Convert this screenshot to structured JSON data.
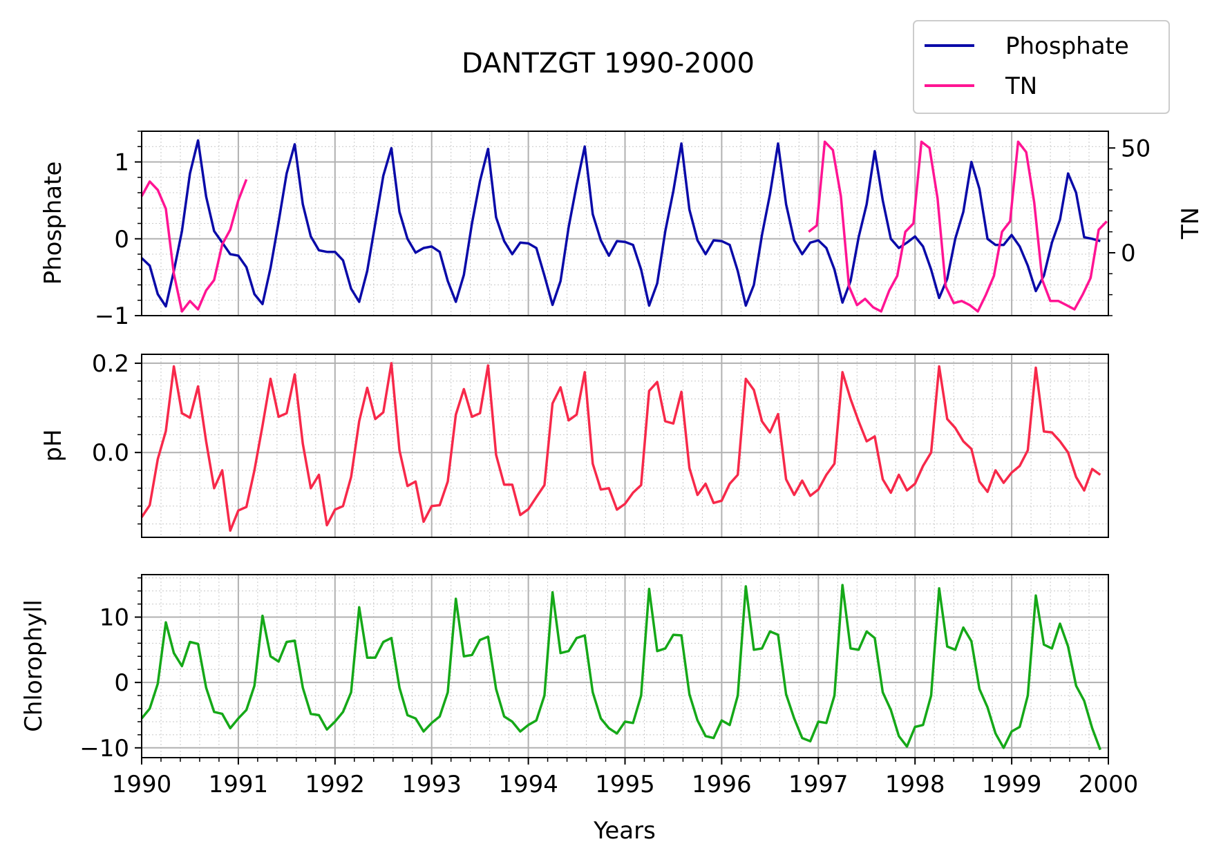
{
  "figure": {
    "title": "DANTZGT 1990-2000",
    "xlabel": "Years",
    "x_ticks": [
      "1990",
      "1991",
      "1992",
      "1993",
      "1994",
      "1995",
      "1996",
      "1997",
      "1998",
      "1999",
      "2000"
    ]
  },
  "legend": {
    "placement": "top-right, outside axes",
    "items": [
      {
        "label": "Phosphate",
        "color": "#0a0aa8"
      },
      {
        "label": "TN",
        "color": "#ff1493"
      }
    ]
  },
  "chart_data": [
    {
      "type": "line",
      "panel": "top",
      "ylabel": "Phosphate",
      "ylabel_right": "TN",
      "xlim": [
        1990,
        2000
      ],
      "ylim": [
        -1,
        1.4
      ],
      "yticks": [
        {
          "v": 1,
          "label": "1"
        },
        {
          "v": 0,
          "label": "0"
        },
        {
          "v": -1,
          "label": "−1"
        }
      ],
      "ylim_right": [
        -30,
        58
      ],
      "yticks_right": [
        {
          "v": 50,
          "label": "50"
        },
        {
          "v": 0,
          "label": "0"
        }
      ],
      "grid": true,
      "series": [
        {
          "name": "Phosphate",
          "color": "#0a0aa8",
          "x_start": 1990.0,
          "x_step": 0.08333,
          "values": [
            -0.25,
            -0.35,
            -0.72,
            -0.88,
            -0.42,
            0.1,
            0.85,
            1.28,
            0.55,
            0.1,
            -0.05,
            -0.2,
            -0.22,
            -0.37,
            -0.72,
            -0.85,
            -0.38,
            0.22,
            0.85,
            1.23,
            0.45,
            0.03,
            -0.15,
            -0.17,
            -0.17,
            -0.28,
            -0.65,
            -0.82,
            -0.42,
            0.2,
            0.82,
            1.18,
            0.35,
            0.0,
            -0.18,
            -0.12,
            -0.1,
            -0.17,
            -0.55,
            -0.82,
            -0.47,
            0.2,
            0.75,
            1.17,
            0.28,
            -0.03,
            -0.2,
            -0.05,
            -0.06,
            -0.12,
            -0.48,
            -0.86,
            -0.55,
            0.15,
            0.7,
            1.2,
            0.32,
            -0.02,
            -0.22,
            -0.03,
            -0.04,
            -0.08,
            -0.4,
            -0.87,
            -0.58,
            0.1,
            0.62,
            1.24,
            0.38,
            -0.02,
            -0.2,
            -0.02,
            -0.03,
            -0.08,
            -0.42,
            -0.87,
            -0.6,
            0.05,
            0.58,
            1.24,
            0.45,
            -0.02,
            -0.2,
            -0.05,
            -0.02,
            -0.12,
            -0.4,
            -0.83,
            -0.55,
            0.02,
            0.45,
            1.14,
            0.5,
            0.0,
            -0.12,
            -0.05,
            0.03,
            -0.1,
            -0.4,
            -0.77,
            -0.52,
            0.0,
            0.35,
            1.0,
            0.65,
            0.0,
            -0.08,
            -0.08,
            0.05,
            -0.1,
            -0.35,
            -0.68,
            -0.48,
            -0.05,
            0.25,
            0.85,
            0.6,
            0.02,
            0.0,
            -0.03
          ]
        },
        {
          "name": "TN",
          "color": "#ff1493",
          "axis": "right",
          "segments": [
            {
              "x_start": 1990.0,
              "x_step": 0.08333,
              "values": [
                27,
                34,
                30,
                21,
                -10,
                -28,
                -23,
                -27,
                -18,
                -13,
                4,
                11,
                25,
                35
              ]
            },
            {
              "x_start": 1996.9,
              "x_step": 0.08333,
              "values": [
                10,
                13,
                53,
                49,
                27,
                -16,
                -25,
                -22,
                -26,
                -28,
                -18,
                -11,
                10,
                14,
                53,
                50,
                26,
                -16,
                -24,
                -23,
                -25,
                -28,
                -20,
                -11,
                10,
                15,
                53,
                48,
                24,
                -13,
                -23,
                -23,
                -25,
                -27,
                -20,
                -12,
                11,
                15
              ]
            }
          ]
        }
      ]
    },
    {
      "type": "line",
      "panel": "middle",
      "ylabel": "pH",
      "xlim": [
        1990,
        2000
      ],
      "ylim": [
        -0.19,
        0.22
      ],
      "yticks": [
        {
          "v": 0.2,
          "label": "0.2"
        },
        {
          "v": 0.0,
          "label": "0.0"
        }
      ],
      "grid": true,
      "series": [
        {
          "name": "pH",
          "color": "#f7294a",
          "x_start": 1990.0,
          "x_step": 0.08333,
          "values": [
            -0.145,
            -0.118,
            -0.015,
            0.048,
            0.193,
            0.088,
            0.078,
            0.148,
            0.025,
            -0.08,
            -0.04,
            -0.175,
            -0.13,
            -0.122,
            -0.04,
            0.06,
            0.165,
            0.08,
            0.088,
            0.175,
            0.02,
            -0.08,
            -0.05,
            -0.163,
            -0.128,
            -0.12,
            -0.055,
            0.07,
            0.145,
            0.075,
            0.09,
            0.2,
            0.005,
            -0.075,
            -0.065,
            -0.155,
            -0.12,
            -0.118,
            -0.065,
            0.085,
            0.142,
            0.08,
            0.088,
            0.195,
            -0.005,
            -0.072,
            -0.072,
            -0.14,
            -0.127,
            -0.1,
            -0.073,
            0.11,
            0.146,
            0.072,
            0.085,
            0.18,
            -0.025,
            -0.083,
            -0.08,
            -0.128,
            -0.115,
            -0.09,
            -0.073,
            0.138,
            0.158,
            0.07,
            0.065,
            0.136,
            -0.035,
            -0.095,
            -0.07,
            -0.113,
            -0.108,
            -0.07,
            -0.05,
            0.165,
            0.14,
            0.07,
            0.045,
            0.086,
            -0.06,
            -0.095,
            -0.063,
            -0.097,
            -0.083,
            -0.05,
            -0.025,
            0.18,
            0.12,
            0.07,
            0.025,
            0.036,
            -0.06,
            -0.09,
            -0.05,
            -0.085,
            -0.07,
            -0.03,
            0.0,
            0.193,
            0.075,
            0.055,
            0.025,
            0.008,
            -0.065,
            -0.088,
            -0.04,
            -0.068,
            -0.045,
            -0.03,
            0.005,
            0.19,
            0.047,
            0.045,
            0.025,
            0.0,
            -0.055,
            -0.085,
            -0.037,
            -0.05
          ]
        }
      ]
    },
    {
      "type": "line",
      "panel": "bottom",
      "ylabel": "Chlorophyll",
      "xlim": [
        1990,
        2000
      ],
      "ylim": [
        -11.5,
        16.5
      ],
      "yticks": [
        {
          "v": 10,
          "label": "10"
        },
        {
          "v": 0,
          "label": "0"
        },
        {
          "v": -10,
          "label": "−10"
        }
      ],
      "grid": true,
      "series": [
        {
          "name": "Chlorophyll",
          "color": "#15a818",
          "x_start": 1990.0,
          "x_step": 0.08333,
          "values": [
            -5.5,
            -4.0,
            -0.2,
            9.2,
            4.5,
            2.5,
            6.2,
            5.9,
            -0.8,
            -4.5,
            -4.8,
            -7.0,
            -5.5,
            -4.2,
            -0.5,
            10.2,
            4.0,
            3.2,
            6.2,
            6.4,
            -0.8,
            -4.8,
            -5.0,
            -7.2,
            -6.0,
            -4.5,
            -1.5,
            11.5,
            3.8,
            3.8,
            6.2,
            6.8,
            -0.8,
            -5.0,
            -5.5,
            -7.5,
            -6.2,
            -5.2,
            -1.5,
            12.8,
            4.0,
            4.2,
            6.5,
            7.0,
            -1.0,
            -5.2,
            -6.0,
            -7.5,
            -6.5,
            -5.8,
            -2.0,
            13.8,
            4.5,
            4.8,
            6.8,
            7.2,
            -1.5,
            -5.5,
            -7.0,
            -7.8,
            -6.0,
            -6.2,
            -2.0,
            14.3,
            4.8,
            5.2,
            7.3,
            7.2,
            -1.8,
            -5.8,
            -8.2,
            -8.5,
            -5.8,
            -6.5,
            -2.0,
            14.7,
            5.0,
            5.2,
            7.8,
            7.3,
            -1.8,
            -5.5,
            -8.5,
            -9.0,
            -6.0,
            -6.2,
            -2.0,
            14.9,
            5.2,
            5.0,
            7.8,
            6.8,
            -1.5,
            -4.2,
            -8.2,
            -9.8,
            -6.8,
            -6.5,
            -2.0,
            14.4,
            5.5,
            5.0,
            8.4,
            6.3,
            -1.0,
            -3.8,
            -7.8,
            -10.0,
            -7.5,
            -6.8,
            -2.0,
            13.3,
            5.8,
            5.2,
            9.0,
            5.5,
            -0.5,
            -2.8,
            -7.0,
            -10.3
          ]
        }
      ]
    }
  ]
}
